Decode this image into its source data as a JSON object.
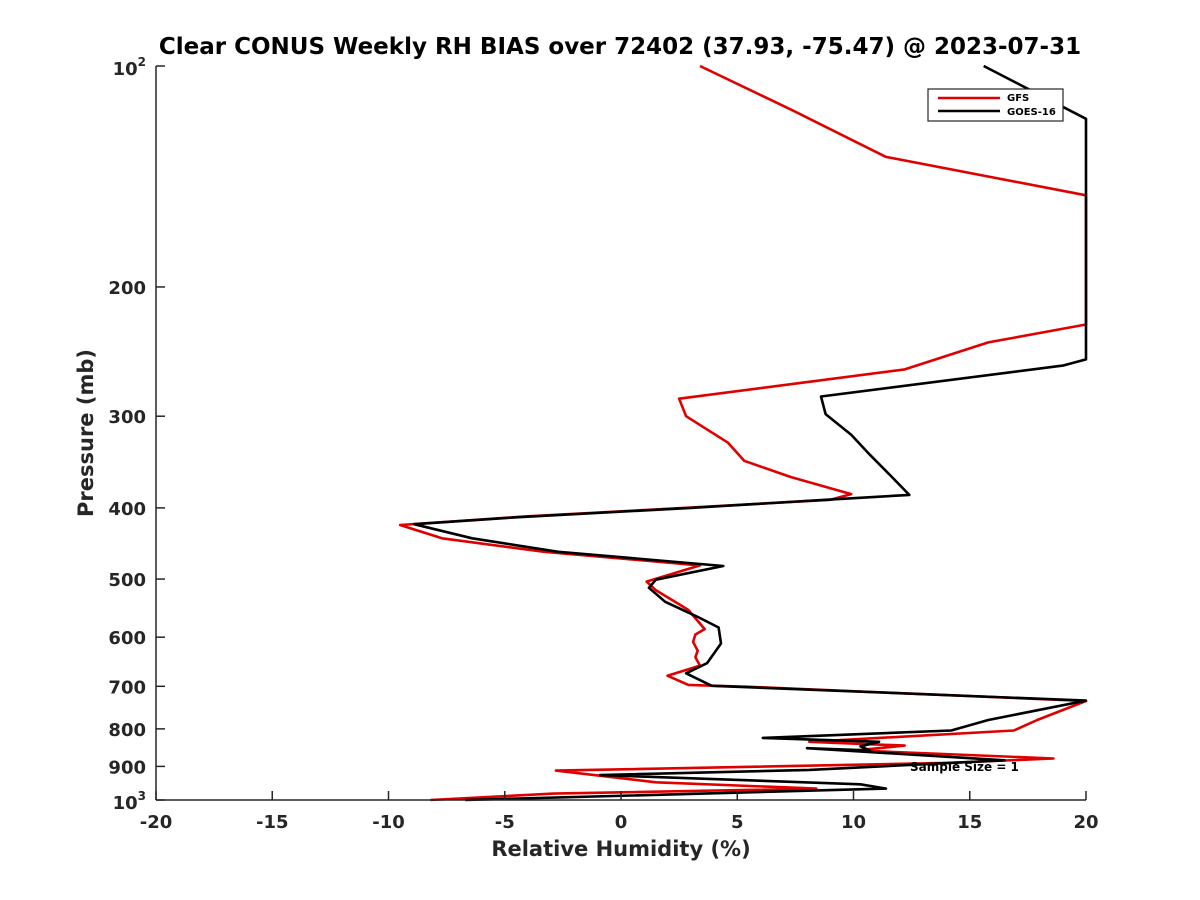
{
  "chart_data": {
    "type": "line",
    "title": "Clear CONUS Weekly RH BIAS over 72402 (37.93, -75.47) @ 2023-07-31",
    "xlabel": "Relative Humidity (%)",
    "ylabel": "Pressure (mb)",
    "xlim": [
      -20,
      20
    ],
    "ylim": [
      100,
      1000
    ],
    "y_scale": "log",
    "y_reversed": true,
    "grid": false,
    "x_ticks": [
      -20,
      -15,
      -10,
      -5,
      0,
      5,
      10,
      15,
      20
    ],
    "y_ticks": [
      {
        "value": 100,
        "base": "10",
        "exp": "2"
      },
      {
        "value": 200,
        "label": "200"
      },
      {
        "value": 300,
        "label": "300"
      },
      {
        "value": 400,
        "label": "400"
      },
      {
        "value": 500,
        "label": "500"
      },
      {
        "value": 600,
        "label": "600"
      },
      {
        "value": 700,
        "label": "700"
      },
      {
        "value": 800,
        "label": "800"
      },
      {
        "value": 900,
        "label": "900"
      },
      {
        "value": 1000,
        "base": "10",
        "exp": "3"
      }
    ],
    "legend": {
      "position": "top-right"
    },
    "annotation": "Sample Size = 1",
    "series": [
      {
        "name": "GFS",
        "color": "#e00000",
        "points": [
          [
            3.4,
            100
          ],
          [
            7.4,
            115
          ],
          [
            11.4,
            133
          ],
          [
            20.0,
            150
          ],
          [
            20.0,
            225
          ],
          [
            15.8,
            238
          ],
          [
            12.2,
            259
          ],
          [
            2.5,
            284
          ],
          [
            2.8,
            300
          ],
          [
            4.6,
            326
          ],
          [
            5.3,
            345
          ],
          [
            7.3,
            363
          ],
          [
            9.9,
            383
          ],
          [
            9.0,
            390
          ],
          [
            2.7,
            400
          ],
          [
            -4.2,
            411
          ],
          [
            -9.5,
            422
          ],
          [
            -7.7,
            440
          ],
          [
            -3.3,
            459
          ],
          [
            3.4,
            479
          ],
          [
            1.1,
            504
          ],
          [
            1.5,
            518
          ],
          [
            2.5,
            541
          ],
          [
            2.9,
            551
          ],
          [
            3.6,
            585
          ],
          [
            3.2,
            595
          ],
          [
            3.1,
            609
          ],
          [
            3.3,
            626
          ],
          [
            3.2,
            639
          ],
          [
            3.4,
            656
          ],
          [
            2.0,
            677
          ],
          [
            2.9,
            697
          ],
          [
            5.5,
            701
          ],
          [
            20.0,
            733
          ],
          [
            17.9,
            778
          ],
          [
            16.9,
            804
          ],
          [
            8.1,
            833
          ],
          [
            12.2,
            843
          ],
          [
            10.1,
            856
          ],
          [
            18.6,
            878
          ],
          [
            14.0,
            890
          ],
          [
            -2.8,
            912
          ],
          [
            1.5,
            946
          ],
          [
            8.4,
            965
          ],
          [
            -2.9,
            980
          ],
          [
            -8.2,
            1000
          ]
        ]
      },
      {
        "name": "GOES-16",
        "color": "#000000",
        "points": [
          [
            15.6,
            100
          ],
          [
            20.0,
            118
          ],
          [
            20.0,
            251
          ],
          [
            19.0,
            256
          ],
          [
            8.6,
            282
          ],
          [
            8.8,
            298
          ],
          [
            9.9,
            318
          ],
          [
            10.6,
            336
          ],
          [
            11.5,
            359
          ],
          [
            12.4,
            384
          ],
          [
            8.8,
            390
          ],
          [
            3.0,
            400
          ],
          [
            -4.5,
            412
          ],
          [
            -8.9,
            421
          ],
          [
            -6.4,
            440
          ],
          [
            -2.7,
            459
          ],
          [
            4.4,
            480
          ],
          [
            1.5,
            501
          ],
          [
            1.2,
            514
          ],
          [
            1.9,
            537
          ],
          [
            3.3,
            563
          ],
          [
            4.2,
            582
          ],
          [
            4.3,
            612
          ],
          [
            3.7,
            651
          ],
          [
            2.8,
            672
          ],
          [
            3.9,
            699
          ],
          [
            20.0,
            732
          ],
          [
            15.8,
            778
          ],
          [
            14.2,
            804
          ],
          [
            6.1,
            823
          ],
          [
            11.1,
            833
          ],
          [
            10.3,
            845
          ],
          [
            10.7,
            856
          ],
          [
            8.0,
            850
          ],
          [
            16.5,
            883
          ],
          [
            8.1,
            910
          ],
          [
            -0.9,
            925
          ],
          [
            10.3,
            952
          ],
          [
            11.4,
            965
          ],
          [
            -6.7,
            1000
          ]
        ]
      }
    ]
  }
}
